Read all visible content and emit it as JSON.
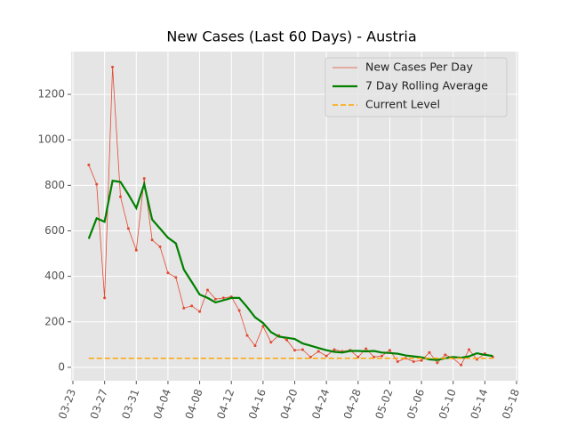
{
  "chart_data": {
    "type": "line",
    "title": "New Cases (Last 60 Days) - Austria",
    "x": [
      "03-25",
      "03-26",
      "03-27",
      "03-28",
      "03-29",
      "03-30",
      "03-31",
      "04-01",
      "04-02",
      "04-03",
      "04-04",
      "04-05",
      "04-06",
      "04-07",
      "04-08",
      "04-09",
      "04-10",
      "04-11",
      "04-12",
      "04-13",
      "04-14",
      "04-15",
      "04-16",
      "04-17",
      "04-18",
      "04-19",
      "04-20",
      "04-21",
      "04-22",
      "04-23",
      "04-24",
      "04-25",
      "04-26",
      "04-27",
      "04-28",
      "04-29",
      "04-30",
      "05-01",
      "05-02",
      "05-03",
      "05-04",
      "05-05",
      "05-06",
      "05-07",
      "05-08",
      "05-09",
      "05-10",
      "05-11",
      "05-12",
      "05-13",
      "05-14",
      "05-15"
    ],
    "series": [
      {
        "name": "New Cases Per Day",
        "color": "#e24a33",
        "width": 0.8,
        "marker": true,
        "values": [
          890,
          805,
          305,
          1320,
          750,
          610,
          515,
          830,
          560,
          530,
          415,
          395,
          260,
          270,
          245,
          340,
          300,
          305,
          310,
          250,
          140,
          95,
          180,
          110,
          140,
          120,
          75,
          78,
          45,
          70,
          50,
          78,
          70,
          75,
          45,
          82,
          45,
          50,
          75,
          25,
          40,
          25,
          30,
          65,
          20,
          55,
          40,
          10,
          78,
          35,
          60,
          45
        ]
      },
      {
        "name": "7 Day Rolling Average",
        "color": "#008000",
        "width": 2.2,
        "values": [
          565,
          655,
          640,
          820,
          815,
          760,
          700,
          805,
          650,
          610,
          570,
          545,
          430,
          375,
          320,
          305,
          285,
          295,
          305,
          305,
          265,
          220,
          195,
          155,
          135,
          130,
          125,
          105,
          95,
          85,
          75,
          68,
          65,
          72,
          72,
          70,
          72,
          65,
          63,
          60,
          52,
          48,
          44,
          35,
          32,
          40,
          45,
          42,
          48,
          62,
          55,
          50
        ]
      },
      {
        "name": "Current Level",
        "color": "#ffa500",
        "width": 1.5,
        "dashed": true,
        "values": [
          40,
          40,
          40,
          40,
          40,
          40,
          40,
          40,
          40,
          40,
          40,
          40,
          40,
          40,
          40,
          40,
          40,
          40,
          40,
          40,
          40,
          40,
          40,
          40,
          40,
          40,
          40,
          40,
          40,
          40,
          40,
          40,
          40,
          40,
          40,
          40,
          40,
          40,
          40,
          40,
          40,
          40,
          40,
          40,
          40,
          40,
          40,
          40,
          40,
          40,
          40,
          40
        ]
      }
    ],
    "xlim": [
      "03-23",
      "05-18"
    ],
    "xticks": [
      "03-23",
      "03-27",
      "03-31",
      "04-04",
      "04-08",
      "04-12",
      "04-16",
      "04-20",
      "04-24",
      "04-28",
      "05-02",
      "05-06",
      "05-10",
      "05-14",
      "05-18"
    ],
    "ylim": [
      -59,
      1388
    ],
    "yticks": [
      0,
      200,
      400,
      600,
      800,
      1000,
      1200
    ],
    "grid": true,
    "legend": "upper right"
  }
}
